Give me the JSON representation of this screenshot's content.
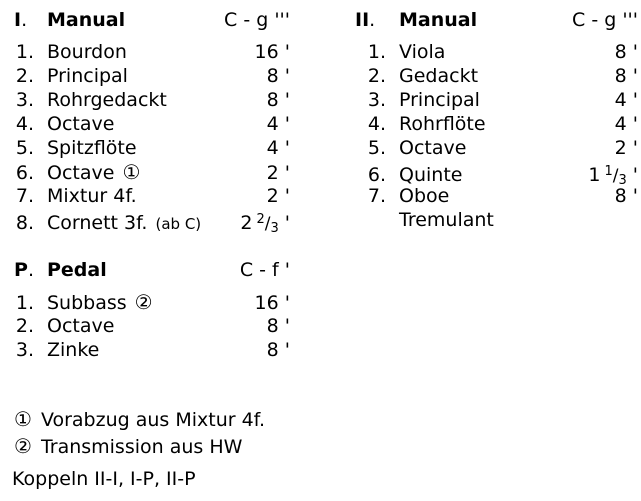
{
  "page": {
    "background": "#ffffff",
    "text_color": "#000000"
  },
  "punct": {
    "dot": "."
  },
  "sections": [
    {
      "num": "I",
      "title": "Manual",
      "range": "C - g '''",
      "stops": [
        {
          "num": "1.",
          "name": "Bourdon",
          "pitch": {
            "int": "16",
            "prime": " '"
          }
        },
        {
          "num": "2.",
          "name": "Principal",
          "pitch": {
            "int": "8",
            "prime": " '"
          }
        },
        {
          "num": "3.",
          "name": "Rohrgedackt",
          "pitch": {
            "int": "8",
            "prime": " '"
          }
        },
        {
          "num": "4.",
          "name": "Octave",
          "pitch": {
            "int": "4",
            "prime": " '"
          }
        },
        {
          "num": "5.",
          "name": "Spitzflöte",
          "pitch": {
            "int": "4",
            "prime": " '"
          }
        },
        {
          "num": "6.",
          "name": "Octave",
          "marker": "①",
          "pitch": {
            "int": "2",
            "prime": " '"
          }
        },
        {
          "num": "7.",
          "name": "Mixtur 4f.",
          "pitch": {
            "int": "2",
            "prime": " '"
          }
        },
        {
          "num": "8.",
          "name": "Cornett 3f.",
          "suffix": "(ab C)",
          "pitch": {
            "int": "2",
            "frac": {
              "num": "2",
              "slash": "/",
              "den": "3"
            },
            "prime": " '"
          }
        }
      ]
    },
    {
      "num": "II",
      "title": "Manual",
      "range": "C - g '''",
      "stops": [
        {
          "num": "1.",
          "name": "Viola",
          "pitch": {
            "int": "8",
            "prime": " '"
          }
        },
        {
          "num": "2.",
          "name": "Gedackt",
          "pitch": {
            "int": "8",
            "prime": " '"
          }
        },
        {
          "num": "3.",
          "name": "Principal",
          "pitch": {
            "int": "4",
            "prime": " '"
          }
        },
        {
          "num": "4.",
          "name": "Rohrflöte",
          "pitch": {
            "int": "4",
            "prime": " '"
          }
        },
        {
          "num": "5.",
          "name": "Octave",
          "pitch": {
            "int": "2",
            "prime": " '"
          }
        },
        {
          "num": "6.",
          "name": "Quinte",
          "pitch": {
            "int": "1",
            "frac": {
              "num": "1",
              "slash": "/",
              "den": "3"
            },
            "prime": " '"
          }
        },
        {
          "num": "7.",
          "name": "Oboe",
          "pitch": {
            "int": "8",
            "prime": " '"
          }
        },
        {
          "num": "",
          "name": "Tremulant",
          "pitch": null
        }
      ]
    },
    {
      "num": "P",
      "title": "Pedal",
      "range": "C - f '",
      "stops": [
        {
          "num": "1.",
          "name": "Subbass",
          "marker": "②",
          "pitch": {
            "int": "16",
            "prime": " '"
          }
        },
        {
          "num": "2.",
          "name": "Octave",
          "pitch": {
            "int": "8",
            "prime": " '"
          }
        },
        {
          "num": "3.",
          "name": "Zinke",
          "pitch": {
            "int": "8",
            "prime": " '"
          }
        }
      ]
    }
  ],
  "footnotes": [
    {
      "marker": "①",
      "text": "Vorabzug aus Mixtur 4f."
    },
    {
      "marker": "②",
      "text": "Transmission aus HW"
    }
  ],
  "couplers": "Koppeln II-I, I-P, II-P"
}
